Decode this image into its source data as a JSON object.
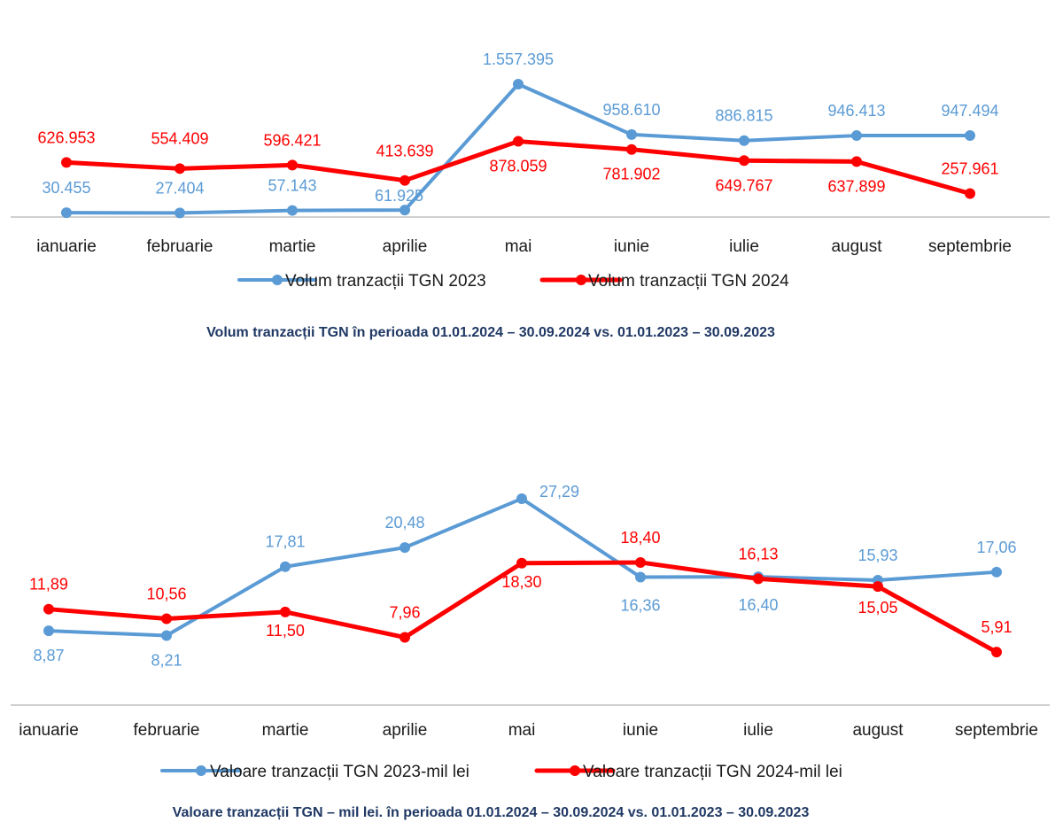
{
  "colors": {
    "series_2023": "#5b9bd5",
    "series_2024": "#ff0000",
    "axis": "#d0d0d0",
    "caption": "#1f3864"
  },
  "chart_data": [
    {
      "type": "line",
      "categories": [
        "ianuarie",
        "februarie",
        "martie",
        "aprilie",
        "mai",
        "iunie",
        "iulie",
        "august",
        "septembrie"
      ],
      "series": [
        {
          "name": "Volum tranzacții TGN 2023",
          "values": [
            30455,
            27404,
            57143,
            61925,
            1557395,
            958610,
            886815,
            946413,
            947494
          ],
          "labels": [
            "30.455",
            "27.404",
            "57.143",
            "61.925",
            "1.557.395",
            "958.610",
            "886.815",
            "946.413",
            "947.494"
          ]
        },
        {
          "name": "Volum tranzacții TGN 2024",
          "values": [
            626953,
            554409,
            596421,
            413639,
            878059,
            781902,
            649767,
            637899,
            257961
          ],
          "labels": [
            "626.953",
            "554.409",
            "596.421",
            "413.639",
            "878.059",
            "781.902",
            "649.767",
            "637.899",
            "257.961"
          ]
        }
      ],
      "title": "Volum tranzacții TGN în perioada 01.01.2024 – 30.09.2024 vs. 01.01.2023 – 30.09.2023",
      "ylim": [
        0,
        1557395
      ],
      "grid": false,
      "legend": "bottom"
    },
    {
      "type": "line",
      "categories": [
        "ianuarie",
        "februarie",
        "martie",
        "aprilie",
        "mai",
        "iunie",
        "iulie",
        "august",
        "septembrie"
      ],
      "series": [
        {
          "name": "Valoare tranzacții TGN 2023-mil lei",
          "values": [
            8.87,
            8.21,
            17.81,
            20.48,
            27.29,
            16.36,
            16.4,
            15.93,
            17.06
          ],
          "labels": [
            "8,87",
            "8,21",
            "17,81",
            "20,48",
            "27,29",
            "16,36",
            "16,40",
            "15,93",
            "17,06"
          ]
        },
        {
          "name": "Valoare tranzacții TGN 2024-mil lei",
          "values": [
            11.89,
            10.56,
            11.5,
            7.96,
            18.3,
            18.4,
            16.13,
            15.05,
            5.91
          ],
          "labels": [
            "11,89",
            "10,56",
            "11,50",
            "7,96",
            "18,30",
            "18,40",
            "16,13",
            "15,05",
            "5,91"
          ]
        }
      ],
      "title": "Valoare tranzacții TGN – mil lei. în perioada 01.01.2024 – 30.09.2024 vs. 01.01.2023 – 30.09.2023",
      "grid": false,
      "legend": "bottom"
    }
  ]
}
